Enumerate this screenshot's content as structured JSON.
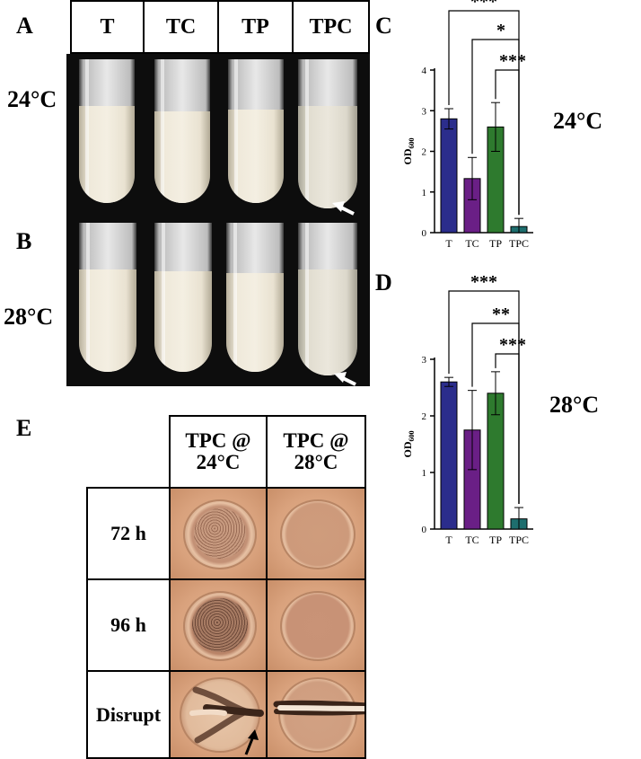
{
  "panels": {
    "A": "A",
    "B": "B",
    "C": "C",
    "D": "D",
    "E": "E"
  },
  "tube_labels": [
    "T",
    "TC",
    "TP",
    "TPC"
  ],
  "temps": {
    "a": "24°C",
    "b": "28°C",
    "c": "24°C",
    "d": "28°C"
  },
  "table": {
    "col_headers": [
      [
        "TPC @",
        "24°C"
      ],
      [
        "TPC @",
        "28°C"
      ]
    ],
    "row_headers": [
      "72 h",
      "96 h",
      "Disrupt"
    ]
  },
  "colors": {
    "T": "#2b2d8c",
    "TC": "#6a1f86",
    "TP": "#2e7a2e",
    "TPC": "#1e6e6e"
  },
  "chart_data": [
    {
      "type": "bar",
      "panel": "C",
      "categories": [
        "T",
        "TC",
        "TP",
        "TPC"
      ],
      "values": [
        2.8,
        1.33,
        2.6,
        0.15
      ],
      "errors": [
        0.25,
        0.52,
        0.6,
        0.2
      ],
      "ylabel": "OD",
      "ylabel_sub": "600",
      "ylim": [
        0,
        4
      ],
      "yticks": [
        "0",
        "1",
        "2",
        "3",
        "4"
      ],
      "significance": [
        {
          "from": "T",
          "to": "TPC",
          "label": "***"
        },
        {
          "from": "TC",
          "to": "TPC",
          "label": "*"
        },
        {
          "from": "TP",
          "to": "TPC",
          "label": "***"
        }
      ]
    },
    {
      "type": "bar",
      "panel": "D",
      "categories": [
        "T",
        "TC",
        "TP",
        "TPC"
      ],
      "values": [
        2.6,
        1.75,
        2.4,
        0.18
      ],
      "errors": [
        0.08,
        0.7,
        0.38,
        0.2
      ],
      "ylabel": "OD",
      "ylabel_sub": "600",
      "ylim": [
        0,
        3
      ],
      "yticks": [
        "0",
        "1",
        "2",
        "3"
      ],
      "significance": [
        {
          "from": "T",
          "to": "TPC",
          "label": "***"
        },
        {
          "from": "TC",
          "to": "TPC",
          "label": "**"
        },
        {
          "from": "TP",
          "to": "TPC",
          "label": "***"
        }
      ]
    }
  ]
}
